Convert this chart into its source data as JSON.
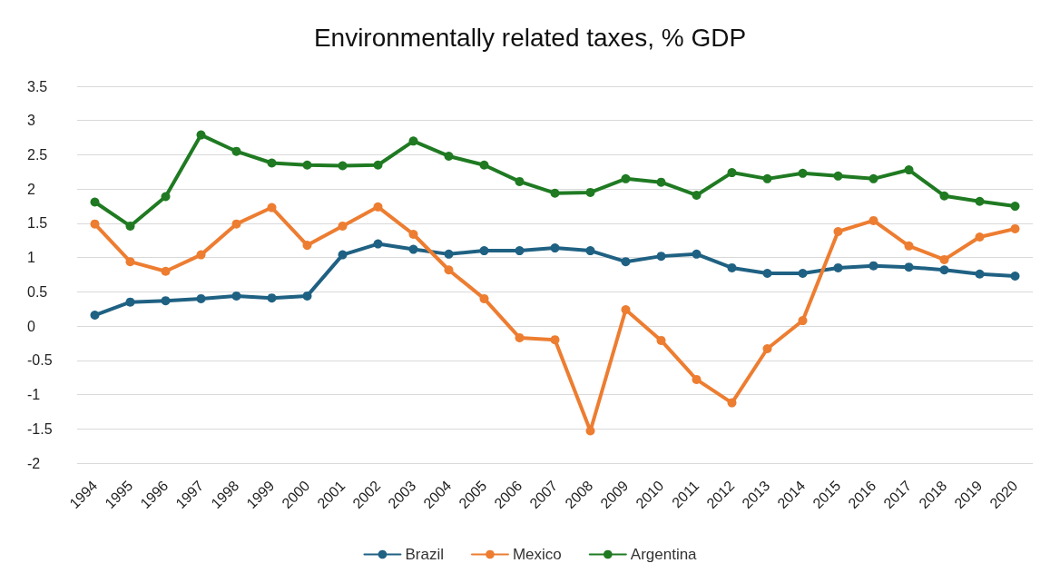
{
  "chart_data": {
    "type": "line",
    "title": "Environmentally related taxes, % GDP",
    "categories": [
      "1994",
      "1995",
      "1996",
      "1997",
      "1998",
      "1999",
      "2000",
      "2001",
      "2002",
      "2003",
      "2004",
      "2005",
      "2006",
      "2007",
      "2008",
      "2009",
      "2010",
      "2011",
      "2012",
      "2013",
      "2014",
      "2015",
      "2016",
      "2017",
      "2018",
      "2019",
      "2020"
    ],
    "series": [
      {
        "name": "Brazil",
        "color": "#1f6183",
        "values": [
          0.16,
          0.35,
          0.37,
          0.4,
          0.44,
          0.41,
          0.44,
          1.04,
          1.2,
          1.12,
          1.05,
          1.1,
          1.1,
          1.14,
          1.1,
          0.94,
          1.02,
          1.05,
          0.85,
          0.77,
          0.77,
          0.85,
          0.88,
          0.86,
          0.82,
          0.76,
          0.73
        ]
      },
      {
        "name": "Mexico",
        "color": "#ed7d31",
        "values": [
          1.49,
          0.94,
          0.8,
          1.04,
          1.49,
          1.73,
          1.18,
          1.46,
          1.74,
          1.34,
          0.82,
          0.4,
          -0.17,
          -0.2,
          -1.53,
          0.24,
          -0.21,
          -0.78,
          -1.12,
          -0.33,
          0.08,
          1.38,
          1.54,
          1.17,
          0.97,
          1.3,
          1.42
        ]
      },
      {
        "name": "Argentina",
        "color": "#1f7a22",
        "values": [
          1.81,
          1.46,
          1.89,
          2.79,
          2.55,
          2.38,
          2.35,
          2.34,
          2.35,
          2.7,
          2.48,
          2.35,
          2.11,
          1.94,
          1.95,
          2.15,
          2.1,
          1.91,
          2.24,
          2.15,
          2.23,
          2.19,
          2.15,
          2.28,
          1.9,
          1.82,
          1.75
        ]
      }
    ],
    "ylim": [
      -2,
      3.5
    ],
    "yticks": [
      -2,
      -1.5,
      -1,
      -0.5,
      0,
      0.5,
      1,
      1.5,
      2,
      2.5,
      3,
      3.5
    ],
    "grid": "y",
    "legend": "bottom",
    "marker": "circle",
    "line_style": "solid"
  }
}
